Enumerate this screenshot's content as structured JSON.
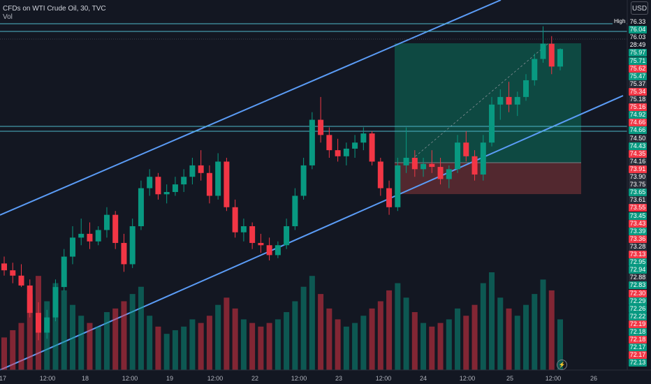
{
  "header": {
    "title": "CFDs on WTI Crude Oil, 30, TVC",
    "indicator": "Vol"
  },
  "currency_button": "USD",
  "high_label": "High",
  "price_scale": [
    {
      "text": "76.33",
      "color": "#131722"
    },
    {
      "text": "76.04",
      "color": "#089981"
    },
    {
      "text": "76.03",
      "color": "#131722"
    },
    {
      "text": "28:49",
      "color": "#131722"
    },
    {
      "text": "75.97",
      "color": "#089981"
    },
    {
      "text": "75.71",
      "color": "#089981"
    },
    {
      "text": "75.62",
      "color": "#f23645"
    },
    {
      "text": "75.47",
      "color": "#089981"
    },
    {
      "text": "75.37",
      "color": "#2a2e39"
    },
    {
      "text": "75.34",
      "color": "#f23645"
    },
    {
      "text": "75.18",
      "color": "#2a2e39"
    },
    {
      "text": "75.16",
      "color": "#f23645"
    },
    {
      "text": "74.92",
      "color": "#089981"
    },
    {
      "text": "74.66",
      "color": "#f23645"
    },
    {
      "text": "74.66",
      "color": "#089981"
    },
    {
      "text": "74.50",
      "color": "#2a2e39"
    },
    {
      "text": "74.43",
      "color": "#089981"
    },
    {
      "text": "74.35",
      "color": "#f23645"
    },
    {
      "text": "74.16",
      "color": "#2a2e39"
    },
    {
      "text": "73.91",
      "color": "#f23645"
    },
    {
      "text": "73.90",
      "color": "#2a2e39"
    },
    {
      "text": "73.75",
      "color": "#2a2e39"
    },
    {
      "text": "73.65",
      "color": "#089981"
    },
    {
      "text": "73.61",
      "color": "#2a2e39"
    },
    {
      "text": "73.55",
      "color": "#f23645"
    },
    {
      "text": "73.45",
      "color": "#089981"
    },
    {
      "text": "73.43",
      "color": "#f23645"
    },
    {
      "text": "73.39",
      "color": "#089981"
    },
    {
      "text": "73.36",
      "color": "#f23645"
    },
    {
      "text": "73.28",
      "color": "#2a2e39"
    },
    {
      "text": "73.13",
      "color": "#f23645"
    },
    {
      "text": "72.95",
      "color": "#089981"
    },
    {
      "text": "72.94",
      "color": "#089981"
    },
    {
      "text": "72.88",
      "color": "#2a2e39"
    },
    {
      "text": "72.83",
      "color": "#089981"
    },
    {
      "text": "72.30",
      "color": "#f23645"
    },
    {
      "text": "72.29",
      "color": "#089981"
    },
    {
      "text": "72.26",
      "color": "#089981"
    },
    {
      "text": "72.22",
      "color": "#089981"
    },
    {
      "text": "72.19",
      "color": "#f23645"
    },
    {
      "text": "72.18",
      "color": "#089981"
    },
    {
      "text": "72.18",
      "color": "#f23645"
    },
    {
      "text": "72.17",
      "color": "#089981"
    },
    {
      "text": "72.17",
      "color": "#f23645"
    },
    {
      "text": "72.13",
      "color": "#089981"
    }
  ],
  "time_axis": [
    "17",
    "12:00",
    "18",
    "12:00",
    "19",
    "12:00",
    "22",
    "12:00",
    "23",
    "12:00",
    "24",
    "12:00",
    "25",
    "12:00",
    "26"
  ],
  "colors": {
    "up": "#089981",
    "down": "#f23645",
    "channel": "#5b9cf6",
    "level": "#4fb8c9",
    "profit_zone": "#0e4f46",
    "loss_zone": "#5a2a31",
    "background": "#131722"
  },
  "chart_data": {
    "type": "candlestick",
    "title": "CFDs on WTI Crude Oil, 30, TVC",
    "timeframe": "30",
    "price_levels": [
      76.33,
      76.04,
      74.66,
      74.66
    ],
    "candles": [
      {
        "o": 73.21,
        "h": 73.3,
        "l": 73.05,
        "c": 73.12,
        "v": 900
      },
      {
        "o": 73.12,
        "h": 73.22,
        "l": 72.95,
        "c": 73.05,
        "v": 1100
      },
      {
        "o": 73.05,
        "h": 73.2,
        "l": 72.9,
        "c": 72.92,
        "v": 1300
      },
      {
        "o": 72.92,
        "h": 73.0,
        "l": 72.5,
        "c": 72.56,
        "v": 2100
      },
      {
        "o": 72.56,
        "h": 72.7,
        "l": 72.2,
        "c": 72.3,
        "v": 2600
      },
      {
        "o": 72.3,
        "h": 72.6,
        "l": 72.22,
        "c": 72.5,
        "v": 1900
      },
      {
        "o": 72.5,
        "h": 73.0,
        "l": 72.45,
        "c": 72.9,
        "v": 2400
      },
      {
        "o": 72.9,
        "h": 73.4,
        "l": 72.85,
        "c": 73.3,
        "v": 2200
      },
      {
        "o": 73.3,
        "h": 73.7,
        "l": 73.2,
        "c": 73.55,
        "v": 1800
      },
      {
        "o": 73.55,
        "h": 73.8,
        "l": 73.45,
        "c": 73.6,
        "v": 1500
      },
      {
        "o": 73.6,
        "h": 73.75,
        "l": 73.4,
        "c": 73.5,
        "v": 1300
      },
      {
        "o": 73.5,
        "h": 73.7,
        "l": 73.45,
        "c": 73.65,
        "v": 1200
      },
      {
        "o": 73.65,
        "h": 73.95,
        "l": 73.55,
        "c": 73.85,
        "v": 1600
      },
      {
        "o": 73.85,
        "h": 73.9,
        "l": 73.4,
        "c": 73.48,
        "v": 1700
      },
      {
        "o": 73.48,
        "h": 73.6,
        "l": 73.1,
        "c": 73.2,
        "v": 1900
      },
      {
        "o": 73.2,
        "h": 73.8,
        "l": 73.15,
        "c": 73.7,
        "v": 2100
      },
      {
        "o": 73.7,
        "h": 74.3,
        "l": 73.65,
        "c": 74.2,
        "v": 2300
      },
      {
        "o": 74.2,
        "h": 74.45,
        "l": 74.1,
        "c": 74.35,
        "v": 1500
      },
      {
        "o": 74.35,
        "h": 74.4,
        "l": 74.05,
        "c": 74.12,
        "v": 1200
      },
      {
        "o": 74.12,
        "h": 74.25,
        "l": 74.0,
        "c": 74.15,
        "v": 1000
      },
      {
        "o": 74.15,
        "h": 74.35,
        "l": 74.1,
        "c": 74.25,
        "v": 1100
      },
      {
        "o": 74.25,
        "h": 74.45,
        "l": 74.15,
        "c": 74.35,
        "v": 1200
      },
      {
        "o": 74.35,
        "h": 74.6,
        "l": 74.25,
        "c": 74.5,
        "v": 1400
      },
      {
        "o": 74.5,
        "h": 74.7,
        "l": 74.3,
        "c": 74.4,
        "v": 1300
      },
      {
        "o": 74.4,
        "h": 74.5,
        "l": 74.0,
        "c": 74.1,
        "v": 1500
      },
      {
        "o": 74.1,
        "h": 74.66,
        "l": 74.05,
        "c": 74.55,
        "v": 1800
      },
      {
        "o": 74.55,
        "h": 74.6,
        "l": 73.9,
        "c": 73.95,
        "v": 2000
      },
      {
        "o": 73.95,
        "h": 74.05,
        "l": 73.55,
        "c": 73.62,
        "v": 1700
      },
      {
        "o": 73.62,
        "h": 73.8,
        "l": 73.5,
        "c": 73.7,
        "v": 1400
      },
      {
        "o": 73.7,
        "h": 73.75,
        "l": 73.4,
        "c": 73.48,
        "v": 1300
      },
      {
        "o": 73.48,
        "h": 73.6,
        "l": 73.35,
        "c": 73.45,
        "v": 1200
      },
      {
        "o": 73.45,
        "h": 73.55,
        "l": 73.25,
        "c": 73.32,
        "v": 1300
      },
      {
        "o": 73.32,
        "h": 73.5,
        "l": 73.28,
        "c": 73.45,
        "v": 1400
      },
      {
        "o": 73.45,
        "h": 73.8,
        "l": 73.4,
        "c": 73.7,
        "v": 1600
      },
      {
        "o": 73.7,
        "h": 74.2,
        "l": 73.65,
        "c": 74.1,
        "v": 1900
      },
      {
        "o": 74.1,
        "h": 74.6,
        "l": 74.05,
        "c": 74.5,
        "v": 2300
      },
      {
        "o": 74.5,
        "h": 75.2,
        "l": 74.45,
        "c": 75.1,
        "v": 2600
      },
      {
        "o": 75.1,
        "h": 75.4,
        "l": 74.8,
        "c": 74.9,
        "v": 2100
      },
      {
        "o": 74.9,
        "h": 75.0,
        "l": 74.6,
        "c": 74.7,
        "v": 1700
      },
      {
        "o": 74.7,
        "h": 74.85,
        "l": 74.55,
        "c": 74.62,
        "v": 1400
      },
      {
        "o": 74.62,
        "h": 74.8,
        "l": 74.5,
        "c": 74.72,
        "v": 1200
      },
      {
        "o": 74.72,
        "h": 74.9,
        "l": 74.6,
        "c": 74.8,
        "v": 1300
      },
      {
        "o": 74.8,
        "h": 75.0,
        "l": 74.7,
        "c": 74.92,
        "v": 1500
      },
      {
        "o": 74.92,
        "h": 74.95,
        "l": 74.5,
        "c": 74.55,
        "v": 1700
      },
      {
        "o": 74.55,
        "h": 74.6,
        "l": 74.1,
        "c": 74.2,
        "v": 1900
      },
      {
        "o": 74.2,
        "h": 74.3,
        "l": 73.85,
        "c": 73.95,
        "v": 2200
      },
      {
        "o": 73.95,
        "h": 74.6,
        "l": 73.9,
        "c": 74.5,
        "v": 2400
      },
      {
        "o": 74.5,
        "h": 75.0,
        "l": 74.4,
        "c": 74.6,
        "v": 2000
      },
      {
        "o": 74.6,
        "h": 74.7,
        "l": 74.35,
        "c": 74.45,
        "v": 1600
      },
      {
        "o": 74.45,
        "h": 74.6,
        "l": 74.35,
        "c": 74.52,
        "v": 1300
      },
      {
        "o": 74.52,
        "h": 74.7,
        "l": 74.4,
        "c": 74.48,
        "v": 1200
      },
      {
        "o": 74.48,
        "h": 74.6,
        "l": 74.25,
        "c": 74.32,
        "v": 1300
      },
      {
        "o": 74.32,
        "h": 74.5,
        "l": 74.2,
        "c": 74.45,
        "v": 1400
      },
      {
        "o": 74.45,
        "h": 74.9,
        "l": 74.4,
        "c": 74.8,
        "v": 1700
      },
      {
        "o": 74.8,
        "h": 74.95,
        "l": 74.55,
        "c": 74.62,
        "v": 1500
      },
      {
        "o": 74.62,
        "h": 74.7,
        "l": 74.3,
        "c": 74.38,
        "v": 1800
      },
      {
        "o": 74.38,
        "h": 74.9,
        "l": 74.3,
        "c": 74.8,
        "v": 2400
      },
      {
        "o": 74.8,
        "h": 75.4,
        "l": 74.75,
        "c": 75.3,
        "v": 2700
      },
      {
        "o": 75.3,
        "h": 75.5,
        "l": 75.1,
        "c": 75.4,
        "v": 2000
      },
      {
        "o": 75.4,
        "h": 75.6,
        "l": 75.2,
        "c": 75.3,
        "v": 1700
      },
      {
        "o": 75.3,
        "h": 75.47,
        "l": 75.15,
        "c": 75.4,
        "v": 1500
      },
      {
        "o": 75.4,
        "h": 75.7,
        "l": 75.35,
        "c": 75.62,
        "v": 1800
      },
      {
        "o": 75.62,
        "h": 75.97,
        "l": 75.55,
        "c": 75.9,
        "v": 2100
      },
      {
        "o": 75.9,
        "h": 76.33,
        "l": 75.85,
        "c": 76.1,
        "v": 2500
      },
      {
        "o": 76.1,
        "h": 76.2,
        "l": 75.7,
        "c": 75.8,
        "v": 2200
      },
      {
        "o": 75.8,
        "h": 76.04,
        "l": 75.75,
        "c": 76.03,
        "v": 1400
      }
    ]
  }
}
